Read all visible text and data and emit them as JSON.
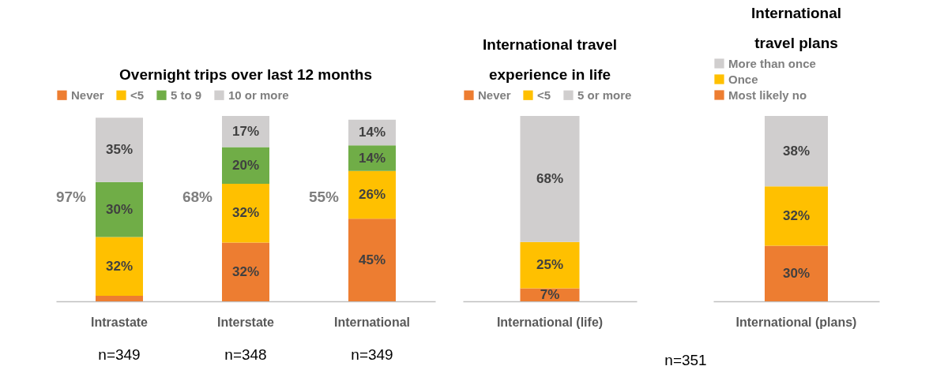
{
  "chart_data": [
    {
      "type": "bar",
      "title": "Overnight trips over last 12 months",
      "categories": [
        "Intrastate",
        "Interstate",
        "International"
      ],
      "stacked": true,
      "legend": "top",
      "series": [
        {
          "name": "Never",
          "color": "#ed7d31",
          "values": [
            3,
            32,
            45
          ],
          "value_labels": [
            null,
            "32%",
            "45%"
          ]
        },
        {
          "name": "<5",
          "color": "#ffc000",
          "values": [
            32,
            32,
            26
          ],
          "value_labels": [
            "32%",
            "32%",
            "26%"
          ]
        },
        {
          "name": "5 to 9",
          "color": "#70ad47",
          "values": [
            30,
            20,
            14
          ],
          "value_labels": [
            "30%",
            "20%",
            "14%"
          ]
        },
        {
          "name": "10 or more",
          "color": "#d0cece",
          "values": [
            35,
            17,
            14
          ],
          "value_labels": [
            "35%",
            "17%",
            "14%"
          ]
        }
      ],
      "annotations": [
        "97%",
        "68%",
        "55%",
        "n=349",
        "n=348",
        "n=349"
      ]
    },
    {
      "type": "bar",
      "title": "International travel experience in life",
      "categories": [
        "International (life)"
      ],
      "stacked": true,
      "legend": "top",
      "series": [
        {
          "name": "Never",
          "color": "#ed7d31",
          "values": [
            7
          ],
          "value_labels": [
            "7%"
          ]
        },
        {
          "name": "<5",
          "color": "#ffc000",
          "values": [
            25
          ],
          "value_labels": [
            "25%"
          ]
        },
        {
          "name": "5 or more",
          "color": "#d0cece",
          "values": [
            68
          ],
          "value_labels": [
            "68%"
          ]
        }
      ]
    },
    {
      "type": "bar",
      "title": "International travel plans",
      "categories": [
        "International (plans)"
      ],
      "stacked": true,
      "legend": "top left",
      "series": [
        {
          "name": "Most likely no",
          "color": "#ed7d31",
          "values": [
            30
          ],
          "value_labels": [
            "30%"
          ]
        },
        {
          "name": "Once",
          "color": "#ffc000",
          "values": [
            32
          ],
          "value_labels": [
            "32%"
          ]
        },
        {
          "name": "More than once",
          "color": "#d0cece",
          "values": [
            38
          ],
          "value_labels": [
            "38%"
          ]
        }
      ],
      "annotations": [
        "n=351"
      ]
    }
  ]
}
